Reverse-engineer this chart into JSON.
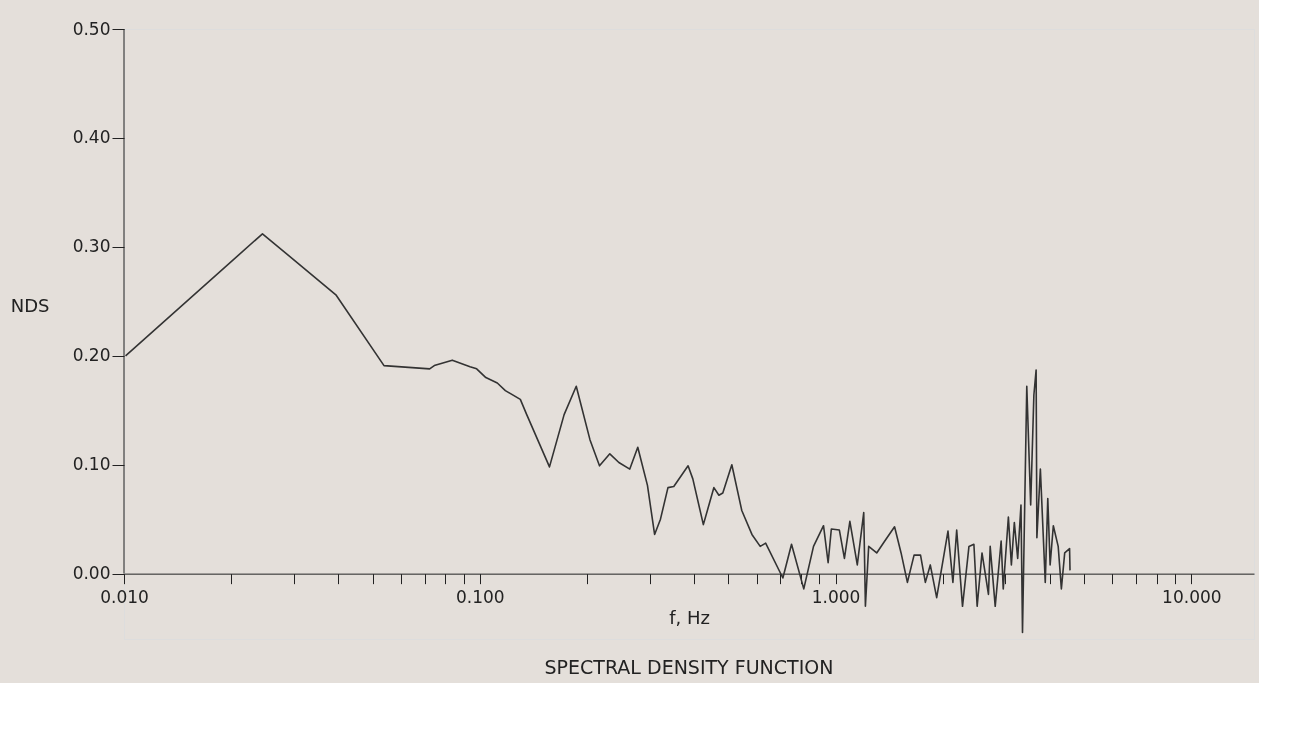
{
  "chart_data": {
    "type": "line",
    "title": "SPECTRAL DENSITY FUNCTION",
    "xlabel": "f, Hz",
    "ylabel": "NDS",
    "log": "x",
    "grid": false,
    "marker": "none",
    "line_style": "solid",
    "xlim": [
      0.01,
      15
    ],
    "ylim": [
      -0.06,
      0.5
    ],
    "xticks": [
      {
        "value": 0.01,
        "label": "0.010"
      },
      {
        "value": 0.02,
        "label": null
      },
      {
        "value": 0.03,
        "label": null
      },
      {
        "value": 0.04,
        "label": null
      },
      {
        "value": 0.05,
        "label": null
      },
      {
        "value": 0.06,
        "label": null
      },
      {
        "value": 0.07,
        "label": null
      },
      {
        "value": 0.08,
        "label": null
      },
      {
        "value": 0.09,
        "label": null
      },
      {
        "value": 0.1,
        "label": "0.100"
      },
      {
        "value": 0.2,
        "label": null
      },
      {
        "value": 0.3,
        "label": null
      },
      {
        "value": 0.4,
        "label": null
      },
      {
        "value": 0.5,
        "label": null
      },
      {
        "value": 0.6,
        "label": null
      },
      {
        "value": 0.7,
        "label": null
      },
      {
        "value": 0.8,
        "label": null
      },
      {
        "value": 0.9,
        "label": null
      },
      {
        "value": 1,
        "label": "1.000"
      },
      {
        "value": 2,
        "label": null
      },
      {
        "value": 3,
        "label": null
      },
      {
        "value": 4,
        "label": null
      },
      {
        "value": 5,
        "label": null
      },
      {
        "value": 6,
        "label": null
      },
      {
        "value": 7,
        "label": null
      },
      {
        "value": 8,
        "label": null
      },
      {
        "value": 9,
        "label": null
      },
      {
        "value": 10,
        "label": "10.000"
      }
    ],
    "yticks": [
      {
        "value": 0,
        "label": "0.00"
      },
      {
        "value": 0.1,
        "label": "0.10"
      },
      {
        "value": 0.2,
        "label": "0.20"
      },
      {
        "value": 0.3,
        "label": "0.30"
      },
      {
        "value": 0.4,
        "label": "0.40"
      },
      {
        "value": 0.5,
        "label": "0.50"
      }
    ],
    "series": [
      {
        "color": "#333333",
        "x": [
          0.0101,
          0.0245,
          0.0394,
          0.0538,
          0.0723,
          0.0745,
          0.0837,
          0.0939,
          0.098,
          0.104,
          0.112,
          0.118,
          0.13,
          0.1355,
          0.157,
          0.1726,
          0.1867,
          0.204,
          0.217,
          0.232,
          0.246,
          0.264,
          0.278,
          0.296,
          0.31,
          0.322,
          0.338,
          0.351,
          0.385,
          0.397,
          0.425,
          0.455,
          0.47,
          0.482,
          0.511,
          0.545,
          0.582,
          0.614,
          0.636,
          0.711,
          0.752,
          0.814,
          0.867,
          0.925,
          0.953,
          0.973,
          1.025,
          1.059,
          1.097,
          1.151,
          1.2,
          1.213,
          1.239,
          1.305,
          1.375,
          1.465,
          1.528,
          1.592,
          1.662,
          1.733,
          1.788,
          1.846,
          1.924,
          2.07,
          2.137,
          2.19,
          2.274,
          2.371,
          2.448,
          2.5,
          2.58,
          2.69,
          2.72,
          2.81,
          2.92,
          2.96,
          3.06,
          3.12,
          3.18,
          3.25,
          3.32,
          3.353,
          3.447,
          3.535,
          3.609,
          3.662,
          3.68,
          3.764,
          3.885,
          3.949,
          4.009,
          4.093,
          4.224,
          4.312,
          4.406,
          4.547,
          4.56
        ],
        "values": [
          0.2,
          0.312,
          0.256,
          0.191,
          0.188,
          0.191,
          0.196,
          0.19,
          0.188,
          0.18,
          0.175,
          0.168,
          0.16,
          0.146,
          0.098,
          0.146,
          0.172,
          0.123,
          0.099,
          0.11,
          0.102,
          0.096,
          0.116,
          0.081,
          0.036,
          0.05,
          0.079,
          0.08,
          0.099,
          0.087,
          0.045,
          0.079,
          0.072,
          0.074,
          0.1,
          0.058,
          0.036,
          0.025,
          0.028,
          -0.004,
          0.027,
          -0.014,
          0.025,
          0.044,
          0.01,
          0.041,
          0.04,
          0.014,
          0.048,
          0.008,
          0.056,
          -0.03,
          0.025,
          0.019,
          0.03,
          0.043,
          0.019,
          -0.008,
          0.017,
          0.017,
          -0.008,
          0.008,
          -0.022,
          0.039,
          -0.008,
          0.04,
          -0.03,
          0.025,
          0.027,
          -0.03,
          0.019,
          -0.019,
          0.025,
          -0.03,
          0.03,
          -0.014,
          0.052,
          0.008,
          0.047,
          0.014,
          0.063,
          -0.054,
          0.172,
          0.063,
          0.164,
          0.187,
          0.033,
          0.096,
          -0.008,
          0.069,
          0.008,
          0.044,
          0.025,
          -0.014,
          0.019,
          0.023,
          0.003
        ]
      }
    ]
  }
}
